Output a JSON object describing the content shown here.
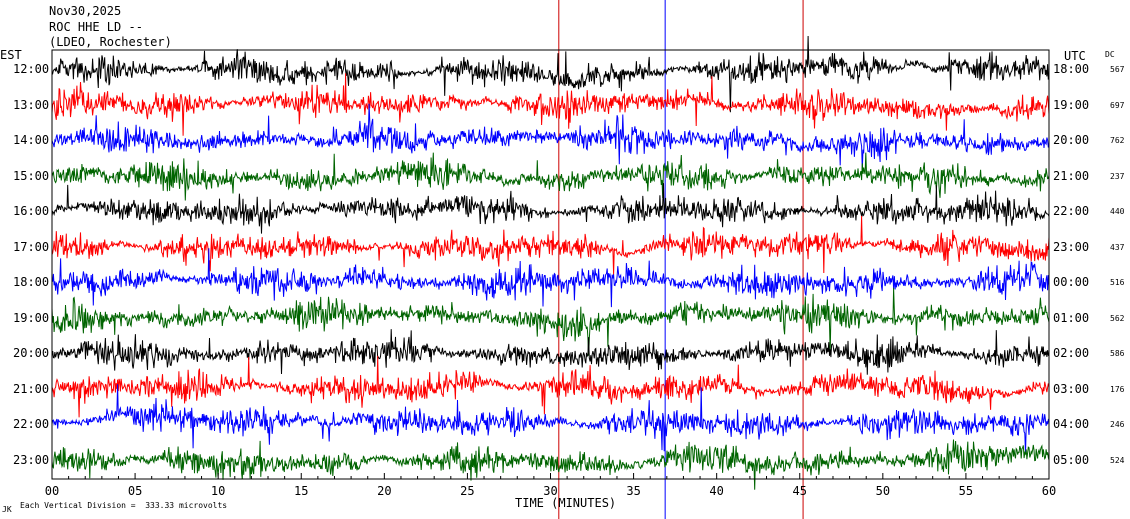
{
  "header": {
    "date": "Nov30,2025",
    "station": "ROC HHE LD --",
    "location": "(LDEO, Rochester)"
  },
  "left_axis": {
    "label": "EST"
  },
  "right_axis": {
    "label": "UTC",
    "dc_label": "DC"
  },
  "footer": {
    "scale_note": "Each Vertical Division =  333.33 microvolts",
    "corner_mark": "JK"
  },
  "colors": {
    "black": "#000000",
    "red": "#ff0000",
    "blue": "#0000ff",
    "green": "#006400",
    "marker_red": "#cc0000",
    "marker_blue": "#0000ff"
  },
  "chart_data": {
    "type": "line",
    "title": "ROC HHE LD --",
    "xlabel": "TIME (MINUTES)",
    "xlim": [
      0,
      60
    ],
    "x_ticks": [
      "00",
      "05",
      "10",
      "15",
      "20",
      "25",
      "30",
      "35",
      "40",
      "45",
      "50",
      "55",
      "60"
    ],
    "series": [
      {
        "est": "12:00",
        "utc": "18:00",
        "dc": "567",
        "color": "black"
      },
      {
        "est": "13:00",
        "utc": "19:00",
        "dc": "697",
        "color": "red"
      },
      {
        "est": "14:00",
        "utc": "20:00",
        "dc": "762",
        "color": "blue"
      },
      {
        "est": "15:00",
        "utc": "21:00",
        "dc": "237",
        "color": "green"
      },
      {
        "est": "16:00",
        "utc": "22:00",
        "dc": "440",
        "color": "black"
      },
      {
        "est": "17:00",
        "utc": "23:00",
        "dc": "437",
        "color": "red"
      },
      {
        "est": "18:00",
        "utc": "00:00",
        "dc": "516",
        "color": "blue"
      },
      {
        "est": "19:00",
        "utc": "01:00",
        "dc": "562",
        "color": "green"
      },
      {
        "est": "20:00",
        "utc": "02:00",
        "dc": "586",
        "color": "black"
      },
      {
        "est": "21:00",
        "utc": "03:00",
        "dc": "176",
        "color": "red"
      },
      {
        "est": "22:00",
        "utc": "04:00",
        "dc": "246",
        "color": "blue"
      },
      {
        "est": "23:00",
        "utc": "05:00",
        "dc": "524",
        "color": "green"
      }
    ],
    "event_markers": [
      {
        "minute": 30.5,
        "color": "marker_red"
      },
      {
        "minute": 45.2,
        "color": "marker_red"
      },
      {
        "minute": 36.9,
        "color": "marker_blue"
      }
    ]
  }
}
